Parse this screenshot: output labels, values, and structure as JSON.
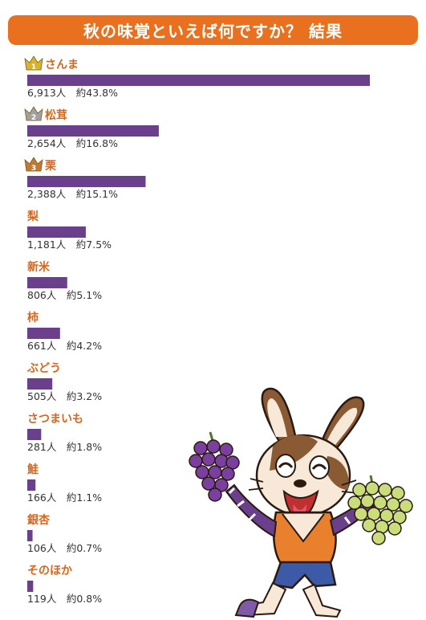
{
  "header": {
    "title": "秋の味覚といえば何ですか？ 結果"
  },
  "colors": {
    "title_bg": "#E9701E",
    "bar": "#6A3F8C",
    "label": "#D8651D",
    "value_text": "#333333",
    "gold": "#D9B32C",
    "silver": "#A0A0A0",
    "bronze": "#C17A34"
  },
  "icons": {
    "rank_1": "gold-crown-icon",
    "rank_2": "silver-crown-icon",
    "rank_3": "bronze-crown-icon"
  },
  "chart_data": {
    "type": "bar",
    "orientation": "horizontal",
    "title": "秋の味覚といえば何ですか？ 結果",
    "categories": [
      "さんま",
      "松茸",
      "栗",
      "梨",
      "新米",
      "柿",
      "ぶどう",
      "さつまいも",
      "鮭",
      "銀杏",
      "そのほか"
    ],
    "values": [
      6913,
      2654,
      2388,
      1181,
      806,
      661,
      505,
      281,
      166,
      106,
      119
    ],
    "value_labels": [
      "6,913人",
      "2,654人",
      "2,388人",
      "1,181人",
      "806人",
      "661人",
      "505人",
      "281人",
      "166人",
      "106人",
      "119人"
    ],
    "percent_labels": [
      "約43.8%",
      "約16.8%",
      "約15.1%",
      "約7.5%",
      "約5.1%",
      "約4.2%",
      "約3.2%",
      "約1.8%",
      "約1.1%",
      "約0.7%",
      "約0.8%"
    ],
    "ranks": [
      "1",
      "2",
      "3"
    ],
    "xlim": [
      0,
      6913
    ]
  }
}
